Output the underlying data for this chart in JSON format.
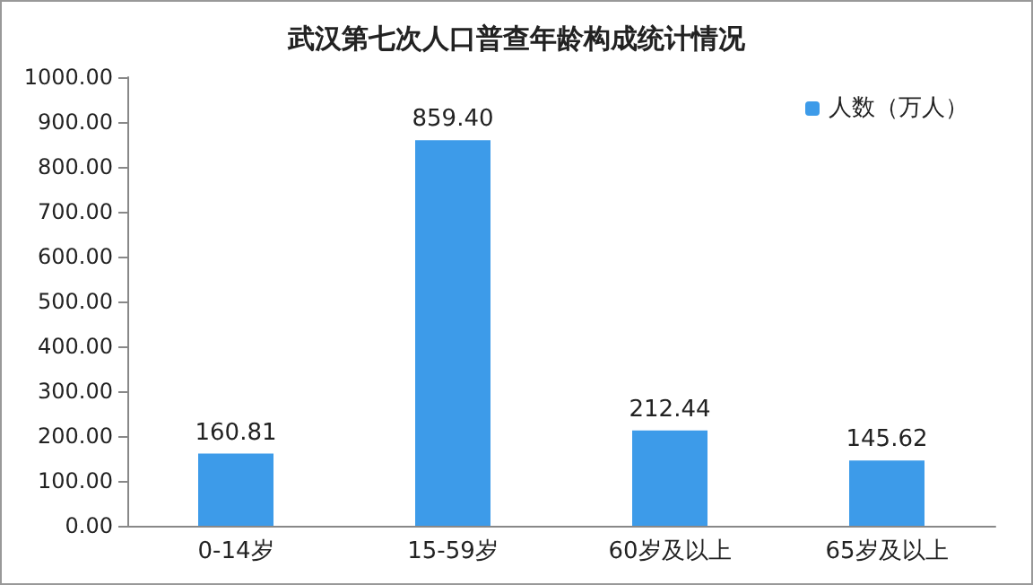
{
  "chart_data": {
    "type": "bar",
    "title": "武汉第七次人口普查年龄构成统计情况",
    "categories": [
      "0-14岁",
      "15-59岁",
      "60岁及以上",
      "65岁及以上"
    ],
    "series": [
      {
        "name": "人数（万人）",
        "color": "#3d9be9",
        "values": [
          160.81,
          859.4,
          212.44,
          145.62
        ]
      }
    ],
    "value_labels": [
      "160.81",
      "859.40",
      "212.44",
      "145.62"
    ],
    "ylim": [
      0,
      1000
    ],
    "yticks": [
      {
        "value": 0,
        "label": "0.00"
      },
      {
        "value": 100,
        "label": "100.00"
      },
      {
        "value": 200,
        "label": "200.00"
      },
      {
        "value": 300,
        "label": "300.00"
      },
      {
        "value": 400,
        "label": "400.00"
      },
      {
        "value": 500,
        "label": "500.00"
      },
      {
        "value": 600,
        "label": "600.00"
      },
      {
        "value": 700,
        "label": "700.00"
      },
      {
        "value": 800,
        "label": "800.00"
      },
      {
        "value": 900,
        "label": "900.00"
      },
      {
        "value": 1000,
        "label": "1000.00"
      }
    ],
    "grid": false,
    "legend": "top right"
  }
}
